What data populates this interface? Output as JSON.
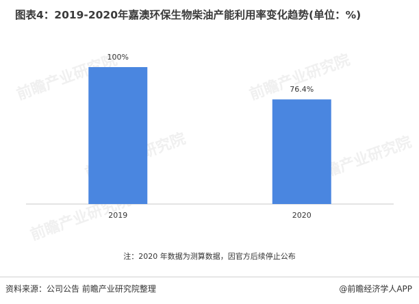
{
  "title": "图表4：2019-2020年嘉澳环保生物柴油产能利用率变化趋势(单位：%)",
  "note": "注：2020 年数据为测算数据，因官方后续停止公布",
  "source": "资料来源：公司公告 前瞻产业研究院整理",
  "brand": "@前瞻经济学人APP",
  "watermark_text": "前瞻产业研究院",
  "colors": {
    "bar": "#4a86e0",
    "axis": "#c8c8c8",
    "text": "#333333"
  },
  "chart_data": {
    "type": "bar",
    "categories": [
      "2019",
      "2020"
    ],
    "values": [
      100,
      76.4
    ],
    "data_labels": [
      "100%",
      "76.4%"
    ],
    "xlabel": "",
    "ylabel": "",
    "ylim": [
      0,
      120
    ],
    "grid": false,
    "legend": "none"
  }
}
